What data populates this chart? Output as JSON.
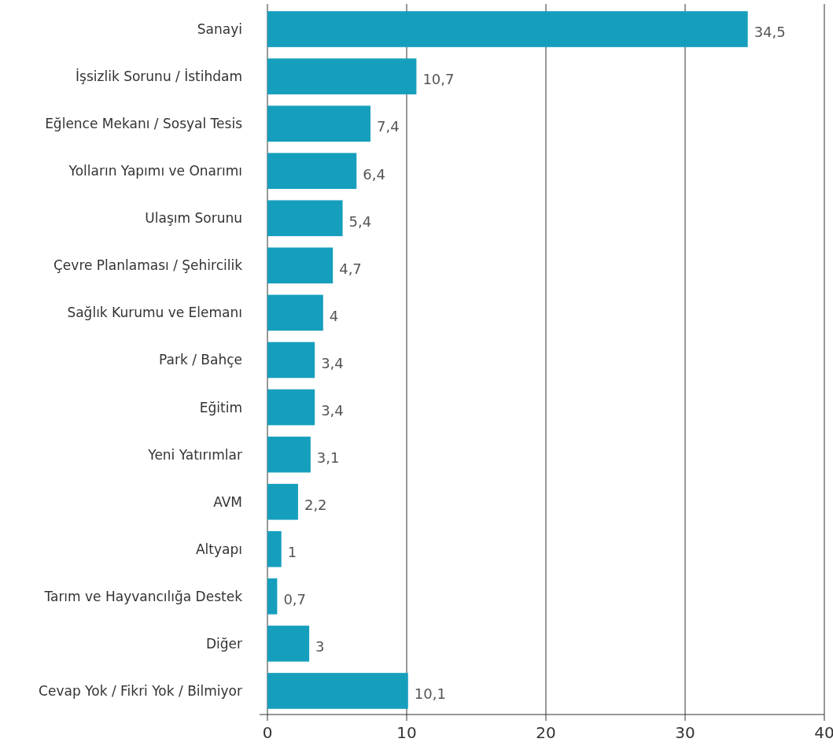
{
  "chart_data": {
    "type": "bar",
    "orientation": "horizontal",
    "categories": [
      "Sanayi",
      "İşsizlik Sorunu / İstihdam",
      "Eğlence Mekanı / Sosyal Tesis",
      "Yolların Yapımı ve Onarımı",
      "Ulaşım Sorunu",
      "Çevre Planlaması / Şehircilik",
      "Sağlık Kurumu ve Elemanı",
      "Park / Bahçe",
      "Eğitim",
      "Yeni Yatırımlar",
      "AVM",
      "Altyapı",
      "Tarım ve Hayvancılığa Destek",
      "Diğer",
      "Cevap Yok / Fikri Yok / Bilmiyor"
    ],
    "values": [
      34.5,
      10.7,
      7.4,
      6.4,
      5.4,
      4.7,
      4,
      3.4,
      3.4,
      3.1,
      2.2,
      1,
      0.7,
      3,
      10.1
    ],
    "value_labels": [
      "34,5",
      "10,7",
      "7,4",
      "6,4",
      "5,4",
      "4,7",
      "4",
      "3,4",
      "3,4",
      "3,1",
      "2,2",
      "1",
      "0,7",
      "3",
      "10,1"
    ],
    "color": "#169fbd",
    "xlim": [
      0,
      40
    ],
    "xticks": [
      0,
      10,
      20,
      30,
      40
    ],
    "grid": "x"
  }
}
